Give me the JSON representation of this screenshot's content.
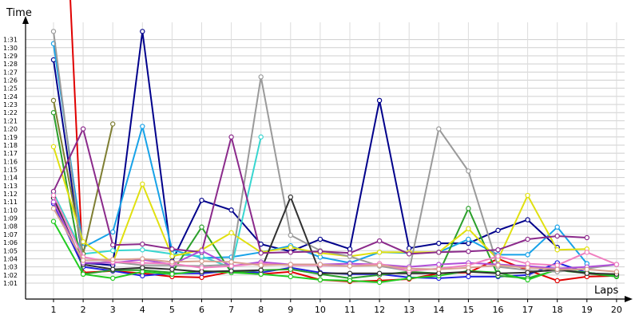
{
  "chart_data": {
    "type": "line",
    "ylabel": "Time",
    "xlabel": "Laps",
    "x": [
      1,
      2,
      3,
      4,
      5,
      6,
      7,
      8,
      9,
      10,
      11,
      12,
      13,
      14,
      15,
      16,
      17,
      18,
      19,
      20
    ],
    "yticks": [
      "1:01",
      "1:02",
      "1:03",
      "1:04",
      "1:05",
      "1:06",
      "1:07",
      "1:08",
      "1:09",
      "1:10",
      "1:11",
      "1:12",
      "1:13",
      "1:14",
      "1:15",
      "1:16",
      "1:17",
      "1:18",
      "1:19",
      "1:20",
      "1:21",
      "1:22",
      "1:23",
      "1:24",
      "1:25",
      "1:26",
      "1:27",
      "1:28",
      "1:29",
      "1:30",
      "1:31"
    ],
    "ylim_seconds": [
      60,
      92
    ],
    "grid": true,
    "series": [
      {
        "color": "#e00000",
        "values": [
          140,
          62.3,
          62.5,
          62.2,
          61.8,
          61.7,
          62.4,
          62.1,
          62.4,
          61.4,
          61.2,
          61.3,
          61.5,
          62.2,
          62.3,
          64,
          62.6,
          61.3,
          61.8,
          61.9
        ]
      },
      {
        "color": "#00008b",
        "values": [
          88.5,
          63.5,
          63.2,
          92,
          63.7,
          71.2,
          70,
          65.8,
          64.9,
          66.4,
          65.2,
          83.5,
          65.3,
          65.9,
          65.9,
          67.5,
          68.8,
          65.4,
          null,
          null
        ]
      },
      {
        "color": "#1f1fe0",
        "values": [
          70.8,
          63,
          62.5,
          61.9,
          62.2,
          62.2,
          62.5,
          62.3,
          62.9,
          62.3,
          62.1,
          62.1,
          61.7,
          61.6,
          61.8,
          61.8,
          62,
          63.5,
          62.3,
          61.9
        ]
      },
      {
        "color": "#17a2e8",
        "values": [
          90.5,
          65.4,
          67.3,
          80.3,
          65.1,
          64.1,
          64.2,
          64.8,
          65.6,
          64.2,
          63.5,
          64.8,
          64.7,
          64.8,
          66.4,
          64.5,
          64.5,
          67.9,
          63.4,
          null
        ]
      },
      {
        "color": "#38d6d0",
        "values": [
          72.1,
          64.6,
          65,
          65.1,
          64.6,
          64.3,
          62.9,
          79,
          null,
          null,
          null,
          null,
          null,
          null,
          null,
          null,
          null,
          null,
          null,
          null
        ]
      },
      {
        "color": "#7e7e32",
        "values": [
          83.5,
          64.6,
          80.6,
          null,
          null,
          null,
          null,
          null,
          null,
          null,
          null,
          null,
          null,
          null,
          null,
          null,
          null,
          null,
          null,
          null
        ]
      },
      {
        "color": "#2ca02c",
        "values": [
          82,
          62.1,
          62.6,
          62.6,
          62.3,
          67.9,
          62.3,
          62.6,
          62.7,
          62.1,
          61.6,
          62,
          62.4,
          62.2,
          70.2,
          61.9,
          61.6,
          62.6,
          62.2,
          61.8
        ]
      },
      {
        "color": "#22cc22",
        "values": [
          68.6,
          62.1,
          61.6,
          62.4,
          62.1,
          62.5,
          62.3,
          62.1,
          61.8,
          61.4,
          61.3,
          61.1,
          61.6,
          61.9,
          62.5,
          62.3,
          61.4,
          62.7,
          62.3,
          61.9
        ]
      },
      {
        "color": "#e0e010",
        "values": [
          77.8,
          66.1,
          63.5,
          73.2,
          64.3,
          65.1,
          67.2,
          64.8,
          65.4,
          64.7,
          64.3,
          64.8,
          64.8,
          64.8,
          67.7,
          63.9,
          71.8,
          65.1,
          65.2,
          null
        ]
      },
      {
        "color": "#9a9a9a",
        "values": [
          92,
          63.5,
          63.6,
          63.2,
          63.2,
          63.1,
          63.3,
          86.4,
          66.9,
          65,
          64.3,
          63.1,
          62.5,
          80,
          74.8,
          63,
          62.6,
          62.4,
          62.8,
          63.3
        ]
      },
      {
        "color": "#303030",
        "values": [
          71.5,
          63.3,
          62.7,
          62.9,
          62.7,
          62.4,
          62.5,
          62.6,
          71.6,
          62.2,
          62.2,
          62.2,
          62.2,
          62.2,
          62.4,
          62.2,
          62.3,
          62.7,
          62.2,
          62.1
        ]
      },
      {
        "color": "#8b2a8b",
        "values": [
          72.3,
          80,
          65.7,
          65.8,
          65.2,
          64.8,
          79,
          64.7,
          64.8,
          64.9,
          64.7,
          66.2,
          64.6,
          64.8,
          64.9,
          65.1,
          66.4,
          66.8,
          66.6,
          null
        ]
      },
      {
        "color": "#b04fd8",
        "values": [
          71,
          63.5,
          63.5,
          63.9,
          63.3,
          65,
          63.1,
          63.6,
          63.3,
          63.3,
          63.4,
          63.3,
          63,
          63.3,
          63.5,
          63.3,
          63.1,
          62.8,
          63,
          63.3
        ]
      },
      {
        "color": "#f080c0",
        "values": [
          71.8,
          64.2,
          63.6,
          63.5,
          63.4,
          62.9,
          63.1,
          63.4,
          63.2,
          63.2,
          63.1,
          63.4,
          62.5,
          62.8,
          63.2,
          64.3,
          63.4,
          63.2,
          64.8,
          63.3
        ]
      },
      {
        "color": "#d8a090",
        "values": [
          70.2,
          63.8,
          63.9,
          64,
          63.6,
          63.7,
          63.6,
          63.2,
          63.3,
          63.3,
          63.1,
          63.2,
          62.8,
          62.7,
          62.9,
          63.2,
          62.9,
          62.7,
          62.7,
          62.4
        ]
      }
    ]
  }
}
